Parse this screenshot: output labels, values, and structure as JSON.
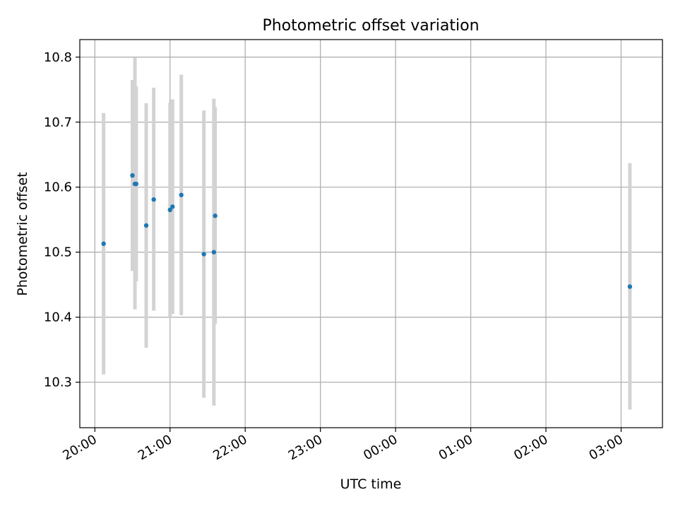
{
  "chart_data": {
    "type": "scatter",
    "title": "Photometric offset variation",
    "xlabel": "UTC time",
    "ylabel": "Photometric offset",
    "x_axis_kind": "time",
    "xlim": [
      "19:48",
      "03:33"
    ],
    "ylim": [
      10.23,
      10.827
    ],
    "x_ticks": [
      "20:00",
      "21:00",
      "22:00",
      "23:00",
      "00:00",
      "01:00",
      "02:00",
      "03:00"
    ],
    "y_ticks": [
      "10.3",
      "10.4",
      "10.5",
      "10.6",
      "10.7",
      "10.8"
    ],
    "grid": true,
    "legend": "none",
    "colors": {
      "marker": "#1f77b4",
      "errorbar": "#d3d3d3",
      "grid": "#b0b0b0"
    },
    "series": [
      {
        "points": [
          {
            "x": "20:07",
            "y": 10.513,
            "y_low": 10.312,
            "y_high": 10.714
          },
          {
            "x": "20:30",
            "y": 10.618,
            "y_low": 10.471,
            "y_high": 10.765
          },
          {
            "x": "20:32",
            "y": 10.605,
            "y_low": 10.412,
            "y_high": 10.799
          },
          {
            "x": "20:33",
            "y": 10.605,
            "y_low": 10.455,
            "y_high": 10.755
          },
          {
            "x": "20:41",
            "y": 10.541,
            "y_low": 10.353,
            "y_high": 10.729
          },
          {
            "x": "20:47",
            "y": 10.581,
            "y_low": 10.41,
            "y_high": 10.753
          },
          {
            "x": "21:00",
            "y": 10.565,
            "y_low": 10.4,
            "y_high": 10.73
          },
          {
            "x": "21:02",
            "y": 10.57,
            "y_low": 10.405,
            "y_high": 10.735
          },
          {
            "x": "21:09",
            "y": 10.588,
            "y_low": 10.403,
            "y_high": 10.773
          },
          {
            "x": "21:27",
            "y": 10.497,
            "y_low": 10.276,
            "y_high": 10.718
          },
          {
            "x": "21:35",
            "y": 10.5,
            "y_low": 10.264,
            "y_high": 10.736
          },
          {
            "x": "21:36",
            "y": 10.556,
            "y_low": 10.39,
            "y_high": 10.723
          },
          {
            "x": "03:07",
            "y": 10.447,
            "y_low": 10.258,
            "y_high": 10.637
          }
        ]
      }
    ]
  }
}
